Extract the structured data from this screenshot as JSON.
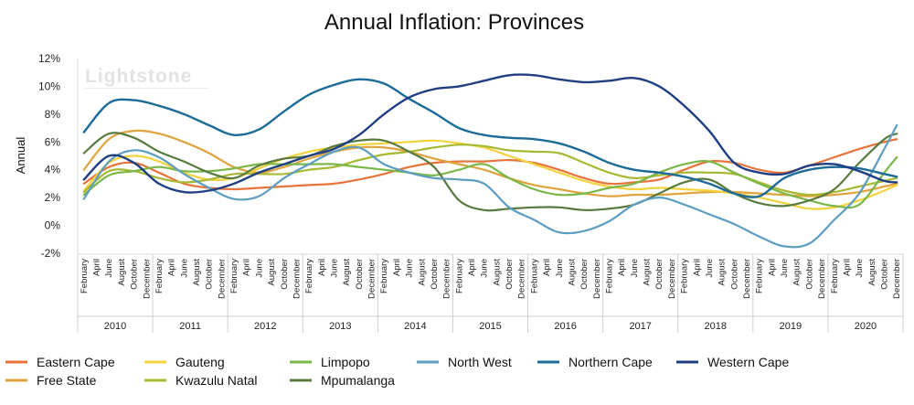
{
  "chart_data": {
    "type": "line",
    "title": "Annual Inflation: Provinces",
    "ylabel": "Annual",
    "xlabel": "",
    "ylim": [
      -2,
      12
    ],
    "yticks": [
      "12%",
      "10%",
      "8%",
      "6%",
      "4%",
      "2%",
      "0%",
      "-2%"
    ],
    "ytick_values": [
      12,
      10,
      8,
      6,
      4,
      2,
      0,
      -2
    ],
    "grid": false,
    "legend_position": "bottom",
    "watermark": "Lightstone",
    "years": [
      "2010",
      "2011",
      "2012",
      "2013",
      "2014",
      "2015",
      "2016",
      "2017",
      "2018",
      "2019",
      "2020"
    ],
    "month_labels": [
      "February",
      "April",
      "June",
      "August",
      "October",
      "December"
    ],
    "x": [
      "2010-02",
      "2010-06",
      "2010-10",
      "2011-02",
      "2011-06",
      "2011-10",
      "2012-02",
      "2012-06",
      "2012-10",
      "2013-02",
      "2013-06",
      "2013-10",
      "2014-02",
      "2014-06",
      "2014-10",
      "2015-02",
      "2015-06",
      "2015-10",
      "2016-02",
      "2016-06",
      "2016-10",
      "2017-02",
      "2017-06",
      "2017-10",
      "2018-02",
      "2018-06",
      "2018-10",
      "2019-02",
      "2019-06",
      "2019-10",
      "2020-02",
      "2020-06",
      "2020-10",
      "2020-12"
    ],
    "series": [
      {
        "name": "Eastern Cape",
        "color": "#e8733a",
        "values": [
          3.0,
          4.2,
          4.5,
          3.8,
          3.0,
          2.7,
          2.6,
          2.7,
          2.8,
          2.9,
          3.0,
          3.3,
          3.7,
          4.2,
          4.5,
          4.6,
          4.6,
          4.7,
          4.5,
          4.0,
          3.4,
          3.0,
          3.1,
          3.3,
          4.0,
          4.6,
          4.5,
          4.0,
          3.8,
          4.3,
          4.9,
          5.5,
          6.0,
          6.2
        ]
      },
      {
        "name": "Free State",
        "color": "#e0a33c",
        "values": [
          4.0,
          6.2,
          6.8,
          6.6,
          6.0,
          5.2,
          4.2,
          3.8,
          4.2,
          4.8,
          5.3,
          5.6,
          5.6,
          5.3,
          4.8,
          4.4,
          4.0,
          3.4,
          2.9,
          2.6,
          2.3,
          2.1,
          2.2,
          2.2,
          2.3,
          2.4,
          2.4,
          2.3,
          2.2,
          2.1,
          2.2,
          2.4,
          2.8,
          3.0
        ]
      },
      {
        "name": "Gauteng",
        "color": "#f4d23b",
        "values": [
          2.5,
          4.5,
          5.0,
          4.6,
          3.8,
          3.3,
          3.4,
          4.1,
          4.8,
          5.3,
          5.6,
          5.8,
          5.9,
          6.0,
          6.1,
          5.9,
          5.6,
          5.0,
          4.4,
          3.8,
          3.2,
          2.8,
          2.6,
          2.7,
          2.6,
          2.5,
          2.3,
          2.0,
          1.6,
          1.2,
          1.3,
          1.8,
          2.5,
          2.9
        ]
      },
      {
        "name": "Kwazulu Natal",
        "color": "#a8b833",
        "values": [
          2.4,
          3.9,
          3.9,
          3.4,
          3.1,
          3.3,
          3.7,
          3.7,
          3.7,
          4.0,
          4.2,
          4.7,
          5.1,
          5.3,
          5.6,
          5.8,
          5.7,
          5.4,
          5.3,
          5.2,
          4.5,
          3.8,
          3.4,
          3.6,
          3.8,
          3.8,
          3.7,
          3.1,
          2.5,
          2.2,
          2.4,
          2.8,
          3.2,
          3.4
        ]
      },
      {
        "name": "Limpopo",
        "color": "#7ab648",
        "values": [
          2.2,
          3.6,
          3.9,
          4.2,
          3.9,
          3.9,
          4.1,
          4.4,
          4.4,
          4.4,
          4.4,
          4.2,
          4.0,
          3.8,
          3.6,
          4.0,
          4.4,
          3.4,
          2.6,
          2.2,
          2.3,
          2.7,
          3.0,
          3.8,
          4.4,
          4.6,
          3.8,
          3.0,
          2.3,
          1.8,
          1.4,
          1.5,
          3.8,
          4.9
        ]
      },
      {
        "name": "Mpumalanga",
        "color": "#587a3e",
        "values": [
          5.2,
          6.6,
          6.3,
          5.3,
          4.6,
          3.8,
          3.4,
          4.3,
          4.8,
          5.0,
          5.7,
          6.1,
          6.1,
          5.3,
          4.2,
          1.8,
          1.1,
          1.2,
          1.3,
          1.3,
          1.1,
          1.2,
          1.5,
          2.3,
          3.1,
          3.3,
          2.3,
          1.6,
          1.4,
          1.8,
          2.6,
          4.5,
          6.2,
          6.6
        ]
      },
      {
        "name": "North West",
        "color": "#5c9dc0",
        "values": [
          1.9,
          4.6,
          5.4,
          4.9,
          3.7,
          2.7,
          1.9,
          2.1,
          3.4,
          4.4,
          5.3,
          5.6,
          4.4,
          3.8,
          3.4,
          3.3,
          3.0,
          1.3,
          0.4,
          -0.5,
          -0.4,
          0.3,
          1.5,
          2.0,
          1.5,
          0.8,
          0.1,
          -0.8,
          -1.5,
          -1.3,
          0.4,
          2.3,
          5.5,
          7.2
        ]
      },
      {
        "name": "Northern Cape",
        "color": "#1c6b98",
        "values": [
          6.7,
          8.8,
          9.0,
          8.6,
          8.0,
          7.2,
          6.5,
          6.9,
          8.2,
          9.4,
          10.1,
          10.5,
          10.2,
          9.1,
          8.1,
          7.0,
          6.5,
          6.3,
          6.2,
          5.9,
          5.3,
          4.5,
          4.0,
          3.8,
          3.5,
          3.0,
          2.3,
          2.1,
          3.4,
          4.0,
          4.2,
          4.1,
          3.7,
          3.5
        ]
      },
      {
        "name": "Western Cape",
        "color": "#1f3f82",
        "values": [
          3.3,
          5.0,
          4.5,
          3.0,
          2.4,
          2.5,
          3.0,
          3.8,
          4.4,
          5.0,
          5.5,
          6.5,
          8.0,
          9.2,
          9.8,
          10.0,
          10.4,
          10.8,
          10.8,
          10.5,
          10.3,
          10.4,
          10.6,
          10.0,
          8.6,
          6.8,
          4.5,
          3.8,
          3.7,
          4.3,
          4.4,
          3.9,
          3.2,
          3.1
        ]
      }
    ]
  }
}
